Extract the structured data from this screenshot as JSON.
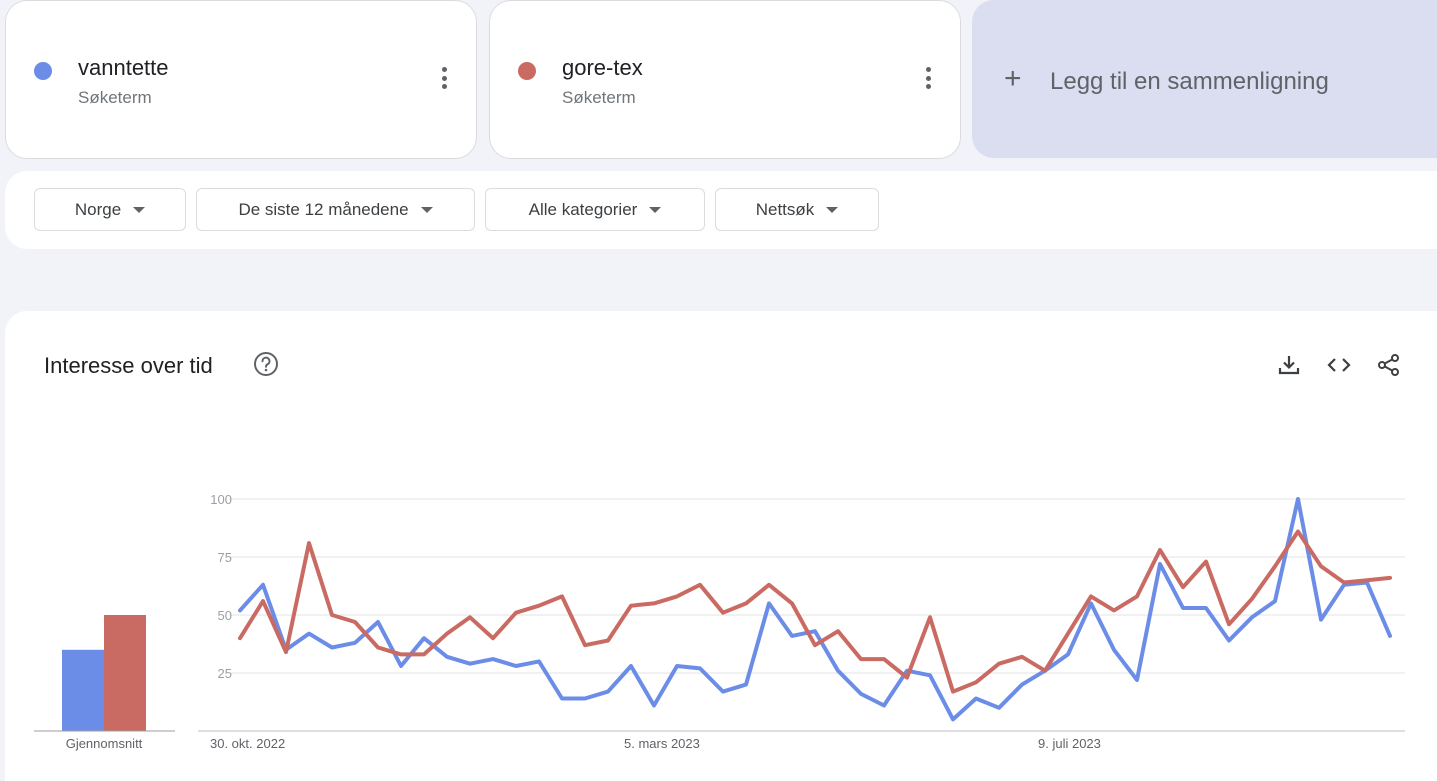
{
  "terms": [
    {
      "name": "vanntette",
      "subtitle": "Søketerm",
      "color": "#6b8de8"
    },
    {
      "name": "gore-tex",
      "subtitle": "Søketerm",
      "color": "#c96b62"
    }
  ],
  "add_comparison": {
    "icon": "plus-icon",
    "label": "Legg til en sammenligning"
  },
  "filters": {
    "region": "Norge",
    "period": "De siste 12 månedene",
    "category": "Alle kategorier",
    "search_type": "Nettsøk"
  },
  "interest": {
    "title": "Interesse over tid",
    "average_label": "Gjennomsnitt"
  },
  "chart_data": {
    "type": "line",
    "y_ticks": [
      "100",
      "75",
      "50",
      "25"
    ],
    "ylim": [
      0,
      100
    ],
    "x_labels": [
      "30. okt. 2022",
      "5. mars 2023",
      "9. juli 2023"
    ],
    "x_label_indices": [
      0,
      18,
      36
    ],
    "grid": true,
    "series": [
      {
        "name": "vanntette",
        "color": "#6b8de8",
        "values": [
          52,
          63,
          35,
          42,
          36,
          38,
          47,
          28,
          40,
          32,
          29,
          31,
          28,
          30,
          14,
          14,
          17,
          28,
          11,
          28,
          27,
          17,
          20,
          55,
          41,
          43,
          26,
          16,
          11,
          26,
          24,
          5,
          14,
          10,
          20,
          26,
          33,
          55,
          35,
          22,
          72,
          53,
          53,
          39,
          49,
          56,
          100,
          48,
          63,
          64,
          41
        ],
        "average": 35
      },
      {
        "name": "gore-tex",
        "color": "#c96b62",
        "values": [
          40,
          56,
          34,
          81,
          50,
          47,
          36,
          33,
          33,
          42,
          49,
          40,
          51,
          54,
          58,
          37,
          39,
          54,
          55,
          58,
          63,
          51,
          55,
          63,
          55,
          37,
          43,
          31,
          31,
          23,
          49,
          17,
          21,
          29,
          32,
          26,
          42,
          58,
          52,
          58,
          78,
          62,
          73,
          46,
          57,
          71,
          86,
          71,
          64,
          65,
          66
        ],
        "average": 50
      }
    ]
  }
}
